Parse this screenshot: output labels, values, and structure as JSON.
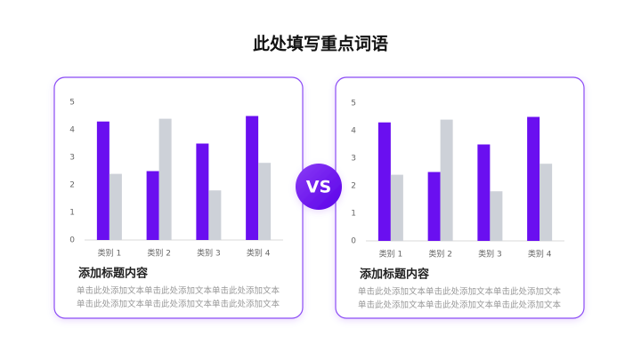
{
  "title": "此处填写重点词语",
  "badge": "VS",
  "chart_data": [
    {
      "type": "bar",
      "title": "添加标题内容",
      "caption": "单击此处添加文本单击此处添加文本单击此处添加文本单击此处添加文本单击此处添加文本单击此处添加文本",
      "categories": [
        "类别 1",
        "类别 2",
        "类别 3",
        "类别 4"
      ],
      "series": [
        {
          "color": "#6a0ff0",
          "values": [
            4.3,
            2.5,
            3.5,
            4.5
          ]
        },
        {
          "color": "#cdd1d8",
          "values": [
            2.4,
            4.4,
            1.8,
            2.8
          ]
        }
      ],
      "ylim": [
        0,
        5
      ],
      "yticks": [
        0,
        1,
        2,
        3,
        4,
        5
      ],
      "grid": false
    },
    {
      "type": "bar",
      "title": "添加标题内容",
      "caption": "单击此处添加文本单击此处添加文本单击此处添加文本单击此处添加文本单击此处添加文本单击此处添加文本",
      "categories": [
        "类别 1",
        "类别 2",
        "类别 3",
        "类别 4"
      ],
      "series": [
        {
          "color": "#6a0ff0",
          "values": [
            4.3,
            2.5,
            3.5,
            4.5
          ]
        },
        {
          "color": "#cdd1d8",
          "values": [
            2.4,
            4.4,
            1.8,
            2.8
          ]
        }
      ],
      "ylim": [
        0,
        5
      ],
      "yticks": [
        0,
        1,
        2,
        3,
        4,
        5
      ],
      "grid": false
    }
  ]
}
